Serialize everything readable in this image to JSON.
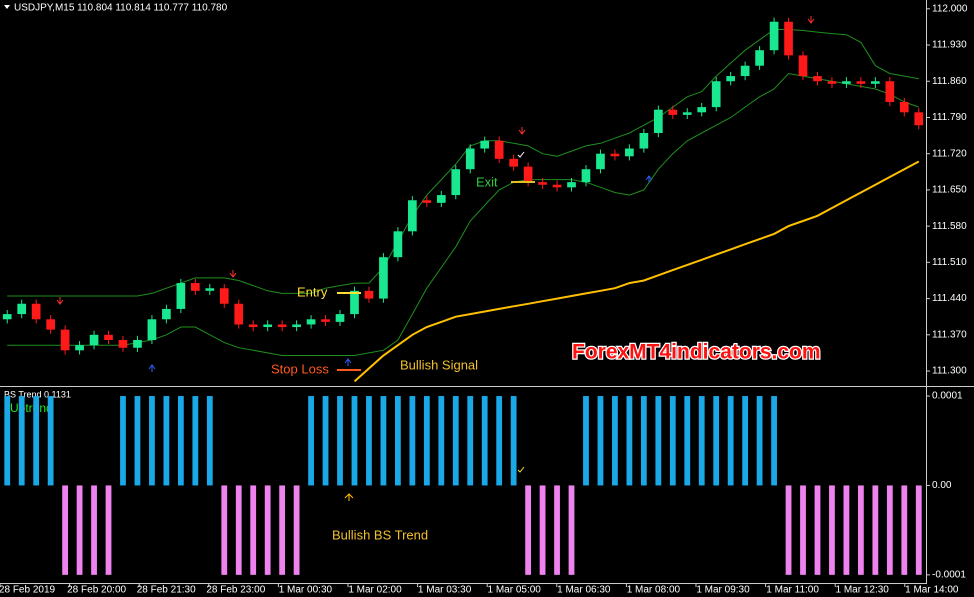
{
  "chart_data": [
    {
      "type": "candlestick",
      "title": "USDJPY,M15  110.804 110.814 110.777 110.780",
      "up_color": "#19e890",
      "down_color": "#ff1a1a",
      "open": [
        111.4,
        111.41,
        111.43,
        111.4,
        111.38,
        111.34,
        111.35,
        111.37,
        111.36,
        111.345,
        111.36,
        111.4,
        111.42,
        111.47,
        111.455,
        111.46,
        111.43,
        111.39,
        111.385,
        111.39,
        111.385,
        111.39,
        111.4,
        111.395,
        111.41,
        111.455,
        111.44,
        111.52,
        111.57,
        111.63,
        111.625,
        111.64,
        111.69,
        111.73,
        111.745,
        111.71,
        111.695,
        111.665,
        111.66,
        111.655,
        111.665,
        111.69,
        111.72,
        111.715,
        111.73,
        111.76,
        111.805,
        111.795,
        111.8,
        111.81,
        111.86,
        111.87,
        111.89,
        111.92,
        111.975,
        111.91,
        111.87,
        111.86,
        111.855,
        111.86,
        111.855,
        111.86,
        111.82,
        111.8
      ],
      "high": [
        111.418,
        111.438,
        111.438,
        111.408,
        111.388,
        111.358,
        111.378,
        111.378,
        111.368,
        111.368,
        111.408,
        111.428,
        111.478,
        111.478,
        111.468,
        111.468,
        111.438,
        111.398,
        111.398,
        111.398,
        111.398,
        111.408,
        111.408,
        111.418,
        111.463,
        111.463,
        111.528,
        111.578,
        111.638,
        111.638,
        111.648,
        111.698,
        111.738,
        111.753,
        111.753,
        111.718,
        111.703,
        111.673,
        111.668,
        111.673,
        111.698,
        111.728,
        111.728,
        111.738,
        111.768,
        111.813,
        111.813,
        111.808,
        111.818,
        111.868,
        111.878,
        111.898,
        111.928,
        111.983,
        111.983,
        111.918,
        111.878,
        111.868,
        111.868,
        111.868,
        111.868,
        111.868,
        111.828,
        111.808
      ],
      "low": [
        111.392,
        111.402,
        111.392,
        111.372,
        111.332,
        111.332,
        111.342,
        111.352,
        111.337,
        111.337,
        111.352,
        111.392,
        111.412,
        111.447,
        111.447,
        111.422,
        111.382,
        111.377,
        111.377,
        111.377,
        111.377,
        111.382,
        111.387,
        111.387,
        111.402,
        111.432,
        111.432,
        111.512,
        111.562,
        111.617,
        111.617,
        111.632,
        111.682,
        111.722,
        111.702,
        111.687,
        111.657,
        111.652,
        111.647,
        111.647,
        111.657,
        111.682,
        111.707,
        111.707,
        111.722,
        111.752,
        111.787,
        111.787,
        111.792,
        111.802,
        111.852,
        111.862,
        111.882,
        111.912,
        111.902,
        111.862,
        111.852,
        111.847,
        111.847,
        111.847,
        111.847,
        111.812,
        111.792,
        111.767
      ],
      "close": [
        111.41,
        111.43,
        111.4,
        111.38,
        111.34,
        111.35,
        111.37,
        111.36,
        111.345,
        111.36,
        111.4,
        111.42,
        111.47,
        111.455,
        111.46,
        111.43,
        111.39,
        111.385,
        111.39,
        111.385,
        111.39,
        111.4,
        111.395,
        111.41,
        111.455,
        111.44,
        111.52,
        111.57,
        111.63,
        111.625,
        111.64,
        111.69,
        111.73,
        111.745,
        111.71,
        111.695,
        111.665,
        111.66,
        111.655,
        111.665,
        111.69,
        111.72,
        111.715,
        111.73,
        111.76,
        111.805,
        111.795,
        111.8,
        111.81,
        111.86,
        111.87,
        111.89,
        111.92,
        111.975,
        111.91,
        111.87,
        111.86,
        111.855,
        111.86,
        111.855,
        111.86,
        111.82,
        111.8,
        111.775
      ],
      "series": [
        {
          "color": "#1f8f1f",
          "values": [
            111.445,
            111.445,
            111.445,
            111.445,
            111.445,
            111.445,
            111.445,
            111.445,
            111.445,
            111.445,
            111.45,
            111.46,
            111.47,
            111.48,
            111.48,
            111.48,
            111.475,
            111.465,
            111.455,
            111.45,
            111.45,
            111.45,
            111.46,
            111.465,
            111.47,
            111.47,
            111.5,
            111.55,
            111.6,
            111.64,
            111.67,
            111.7,
            111.735,
            111.745,
            111.745,
            111.74,
            111.735,
            111.72,
            111.715,
            111.725,
            111.735,
            111.74,
            111.75,
            111.76,
            111.775,
            111.79,
            111.81,
            111.83,
            111.84,
            111.87,
            111.895,
            111.92,
            111.94,
            111.96,
            111.96,
            111.958,
            111.955,
            111.952,
            111.95,
            111.935,
            111.89,
            111.875,
            111.87,
            111.865
          ]
        },
        {
          "color": "#1f8f1f",
          "values": [
            111.35,
            111.35,
            111.35,
            111.35,
            111.35,
            111.35,
            111.35,
            111.35,
            111.35,
            111.355,
            111.36,
            111.37,
            111.385,
            111.385,
            111.37,
            111.355,
            111.345,
            111.34,
            111.335,
            111.33,
            111.33,
            111.33,
            111.33,
            111.33,
            111.33,
            111.335,
            111.34,
            111.36,
            111.41,
            111.46,
            111.5,
            111.54,
            111.59,
            111.62,
            111.65,
            111.665,
            111.67,
            111.67,
            111.67,
            111.67,
            111.665,
            111.655,
            111.645,
            111.64,
            111.65,
            111.69,
            111.72,
            111.745,
            111.76,
            111.775,
            111.79,
            111.81,
            111.83,
            111.845,
            111.875,
            111.87,
            111.865,
            111.86,
            111.855,
            111.85,
            111.845,
            111.835,
            111.82,
            111.81
          ]
        },
        {
          "color": "#ffc000",
          "values": [
            null,
            null,
            null,
            null,
            null,
            null,
            null,
            null,
            null,
            null,
            null,
            null,
            null,
            null,
            null,
            null,
            null,
            null,
            null,
            null,
            null,
            null,
            null,
            null,
            111.28,
            111.305,
            111.33,
            111.35,
            111.37,
            111.385,
            111.395,
            111.405,
            111.41,
            111.415,
            111.42,
            111.425,
            111.43,
            111.435,
            111.44,
            111.445,
            111.45,
            111.455,
            111.46,
            111.47,
            111.475,
            111.485,
            111.495,
            111.505,
            111.515,
            111.525,
            111.535,
            111.545,
            111.555,
            111.565,
            111.58,
            111.59,
            111.6,
            111.615,
            111.63,
            111.645,
            111.66,
            111.675,
            111.69,
            111.705
          ]
        }
      ],
      "ylim": [
        111.273,
        112.017
      ],
      "yticks": [
        {
          "value": 112,
          "label": "112.000"
        },
        {
          "value": 111.93,
          "label": "111.930"
        },
        {
          "value": 111.86,
          "label": "111.860"
        },
        {
          "value": 111.79,
          "label": "111.790"
        },
        {
          "value": 111.72,
          "label": "111.720"
        },
        {
          "value": 111.65,
          "label": "111.650"
        },
        {
          "value": 111.58,
          "label": "111.580"
        },
        {
          "value": 111.51,
          "label": "111.510"
        },
        {
          "value": 111.44,
          "label": "111.440"
        },
        {
          "value": 111.37,
          "label": "111.370"
        },
        {
          "value": 111.3,
          "label": "111.300"
        }
      ],
      "annotations": [
        {
          "text": "Entry",
          "color": "#ffe033"
        },
        {
          "text": "Stop Loss",
          "color": "#ff5a1e"
        },
        {
          "text": "Bullish Signal",
          "color": "#f2c12e"
        },
        {
          "text": "Exit",
          "color": "#2ecc40"
        },
        {
          "text": "ForexMT4indicators.com",
          "color": "#ff1010"
        }
      ]
    },
    {
      "type": "bar",
      "title": "BS Trend 0.1131",
      "label": "Uptrend",
      "up_color": "#1aa8e6",
      "down_color": "#ee82ee",
      "values": [
        0.0001,
        0.0001,
        0.0001,
        0.0001,
        -0.0001,
        -0.0001,
        -0.0001,
        -0.0001,
        0.0001,
        0.0001,
        0.0001,
        0.0001,
        0.0001,
        0.0001,
        0.0001,
        -0.0001,
        -0.0001,
        -0.0001,
        -0.0001,
        -0.0001,
        -0.0001,
        0.0001,
        0.0001,
        0.0001,
        0.0001,
        0.0001,
        0.0001,
        0.0001,
        0.0001,
        0.0001,
        0.0001,
        0.0001,
        0.0001,
        0.0001,
        0.0001,
        0.0001,
        -0.0001,
        -0.0001,
        -0.0001,
        -0.0001,
        0.0001,
        0.0001,
        0.0001,
        0.0001,
        0.0001,
        0.0001,
        0.0001,
        0.0001,
        0.0001,
        0.0001,
        0.0001,
        0.0001,
        0.0001,
        0.0001,
        -0.0001,
        -0.0001,
        -0.0001,
        -0.0001,
        -0.0001,
        -0.0001,
        -0.0001,
        -0.0001,
        -0.0001,
        -0.0001
      ],
      "ylim": [
        -0.000108,
        0.000109
      ],
      "yticks": [
        0.0001,
        {
          "value": 0,
          "label": "0.00"
        },
        -0.0001
      ],
      "annotation": {
        "text": "Bullish BS Trend",
        "color": "#f2c12e"
      },
      "xtick_labels": [
        "28 Feb 2019",
        "28 Feb 20:00",
        "28 Feb 21:30",
        "28 Feb 23:00",
        "1 Mar 00:30",
        "1 Mar 02:00",
        "1 Mar 03:30",
        "1 Mar 05:00",
        "1 Mar 06:30",
        "1 Mar 08:00",
        "1 Mar 09:30",
        "1 Mar 11:00",
        "1 Mar 12:30",
        "1 Mar 14:00"
      ]
    }
  ]
}
